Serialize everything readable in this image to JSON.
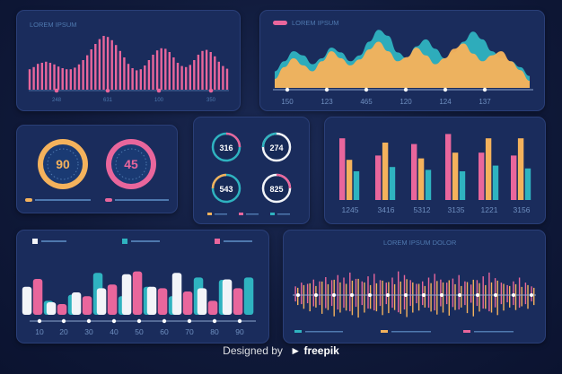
{
  "colors": {
    "background": "#101a3a",
    "panel": "#1a2c5c",
    "pink": "#e9669c",
    "orange": "#f4b25c",
    "teal": "#2fb3c0",
    "white": "#f2f4f8",
    "label": "#4e78ae",
    "tick": "#6f8fc0"
  },
  "panels": {
    "top_left_title": "LOREM IPSUM",
    "top_right_title": "LOREM IPSUM",
    "bottom_right_title": "LOREM IPSUM DOLOR"
  },
  "gauges": {
    "first_value": "90",
    "second_value": "45"
  },
  "rings": [
    "316",
    "274",
    "543",
    "825"
  ],
  "footer": {
    "lead_text": "Designed by",
    "logo_text": "freepik"
  },
  "chart_data": [
    {
      "type": "bar",
      "title": "LOREM IPSUM",
      "description": "pink vertical-bar waveform with three peaks",
      "tick_labels": [
        "248",
        "631",
        "100",
        "350"
      ],
      "values": [
        0.38,
        0.42,
        0.48,
        0.5,
        0.52,
        0.5,
        0.47,
        0.43,
        0.4,
        0.38,
        0.38,
        0.41,
        0.47,
        0.55,
        0.64,
        0.75,
        0.85,
        0.94,
        1.0,
        0.98,
        0.92,
        0.83,
        0.72,
        0.6,
        0.48,
        0.4,
        0.36,
        0.38,
        0.45,
        0.55,
        0.65,
        0.73,
        0.77,
        0.76,
        0.7,
        0.6,
        0.5,
        0.44,
        0.42,
        0.46,
        0.55,
        0.65,
        0.72,
        0.74,
        0.7,
        0.62,
        0.52,
        0.44,
        0.39
      ]
    },
    {
      "type": "area",
      "title": "LOREM IPSUM",
      "x_labels": [
        "150",
        "123",
        "465",
        "120",
        "124",
        "137"
      ],
      "series": [
        {
          "color": "#2fb3c0",
          "values": [
            0.28,
            0.45,
            0.62,
            0.55,
            0.4,
            0.5,
            0.68,
            0.6,
            0.45,
            0.55,
            0.78,
            0.98,
            0.88,
            0.6,
            0.5,
            0.7,
            0.82,
            0.66,
            0.5,
            0.6,
            0.78,
            0.95,
            0.82,
            0.62,
            0.5,
            0.45,
            0.35,
            0.2
          ]
        },
        {
          "color": "#f4b25c",
          "values": [
            0.15,
            0.35,
            0.5,
            0.38,
            0.28,
            0.45,
            0.62,
            0.5,
            0.38,
            0.48,
            0.65,
            0.78,
            0.62,
            0.45,
            0.52,
            0.68,
            0.55,
            0.4,
            0.5,
            0.66,
            0.75,
            0.58,
            0.45,
            0.55,
            0.62,
            0.45,
            0.3,
            0.12
          ]
        }
      ]
    },
    {
      "type": "bar",
      "categories": [
        "1245",
        "3416",
        "5312",
        "3135",
        "1221",
        "3156"
      ],
      "series": [
        {
          "color": "#e9669c",
          "values": [
            0.86,
            0.62,
            0.78,
            0.92,
            0.66,
            0.62
          ]
        },
        {
          "color": "#f4b25c",
          "values": [
            0.56,
            0.8,
            0.58,
            0.66,
            0.86,
            0.86
          ]
        },
        {
          "color": "#2fb3c0",
          "values": [
            0.4,
            0.46,
            0.42,
            0.4,
            0.48,
            0.44
          ]
        }
      ]
    },
    {
      "type": "bar",
      "categories": [
        "10",
        "20",
        "30",
        "40",
        "50",
        "60",
        "70",
        "80",
        "90"
      ],
      "series": [
        {
          "color": "#f2f4f8",
          "values": [
            0.6,
            0.27,
            0.48,
            0.57,
            0.87,
            0.6,
            0.9,
            0.57,
            0.76
          ]
        },
        {
          "color": "#e9669c",
          "values": [
            0.77,
            0.23,
            0.4,
            0.65,
            0.93,
            0.57,
            0.5,
            0.3,
            0.57
          ]
        },
        {
          "color": "#2fb3c0",
          "values": [
            0.3,
            0.43,
            0.9,
            0.4,
            0.6,
            0.4,
            0.8,
            0.75,
            0.8
          ]
        }
      ]
    },
    {
      "type": "bar",
      "title": "LOREM IPSUM DOLOR",
      "description": "dense vertical waveform spread above and below a dotted center line",
      "series": [
        {
          "color": "#e9669c",
          "values": [
            0.35,
            0.5,
            0.45,
            0.62,
            0.55,
            0.72,
            0.6,
            0.8,
            0.7,
            0.9,
            0.65,
            0.55,
            0.75,
            0.85,
            0.6,
            0.5,
            0.7,
            0.95,
            0.8,
            0.6,
            0.45,
            0.55,
            0.7,
            0.85,
            0.62,
            0.5,
            0.66,
            0.8,
            0.55,
            0.42,
            0.6,
            0.75,
            0.9,
            0.68,
            0.5,
            0.4,
            0.55,
            0.7,
            0.5,
            0.35
          ]
        },
        {
          "color": "#f4b25c",
          "values": [
            0.4,
            0.55,
            0.65,
            0.5,
            0.75,
            0.6,
            0.85,
            0.7,
            0.62,
            0.8,
            0.9,
            0.7,
            0.55,
            0.65,
            0.8,
            0.72,
            0.6,
            0.75,
            0.88,
            0.7,
            0.62,
            0.5,
            0.66,
            0.78,
            0.7,
            0.82,
            0.6,
            0.5,
            0.72,
            0.85,
            0.66,
            0.55,
            0.7,
            0.8,
            0.62,
            0.5,
            0.6,
            0.45,
            0.55,
            0.4
          ]
        }
      ]
    }
  ]
}
